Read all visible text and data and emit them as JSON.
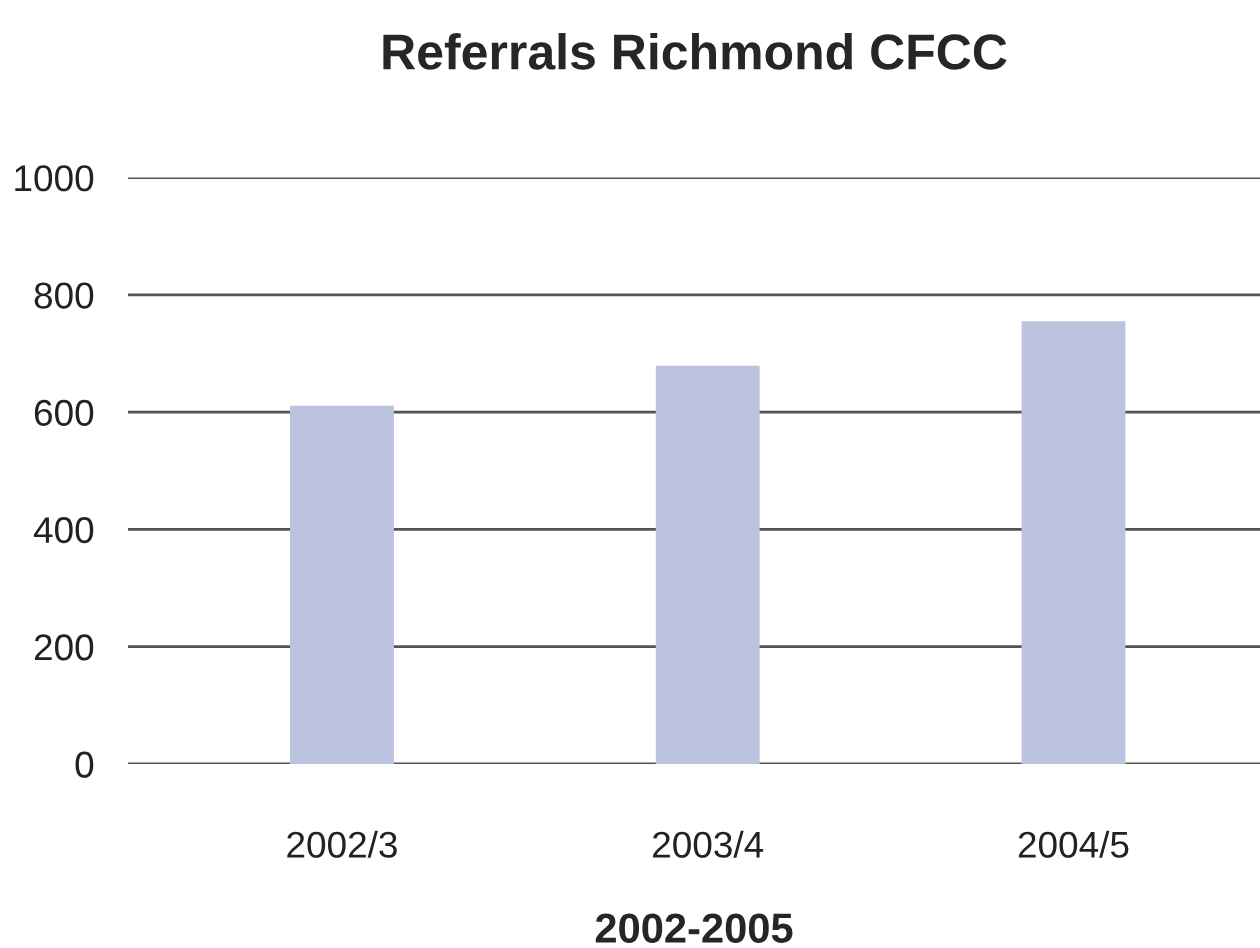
{
  "chart_data": {
    "type": "bar",
    "title": "Referrals Richmond CFCC",
    "xlabel": "2002-2005",
    "categories": [
      "2002/3",
      "2003/4",
      "2004/5"
    ],
    "values": [
      611,
      679,
      755
    ],
    "color": "#bcc3df",
    "ylim": [
      0,
      1000
    ],
    "yticks": [
      0,
      200,
      400,
      600,
      800,
      1000
    ],
    "grid": "y",
    "legend": false
  }
}
